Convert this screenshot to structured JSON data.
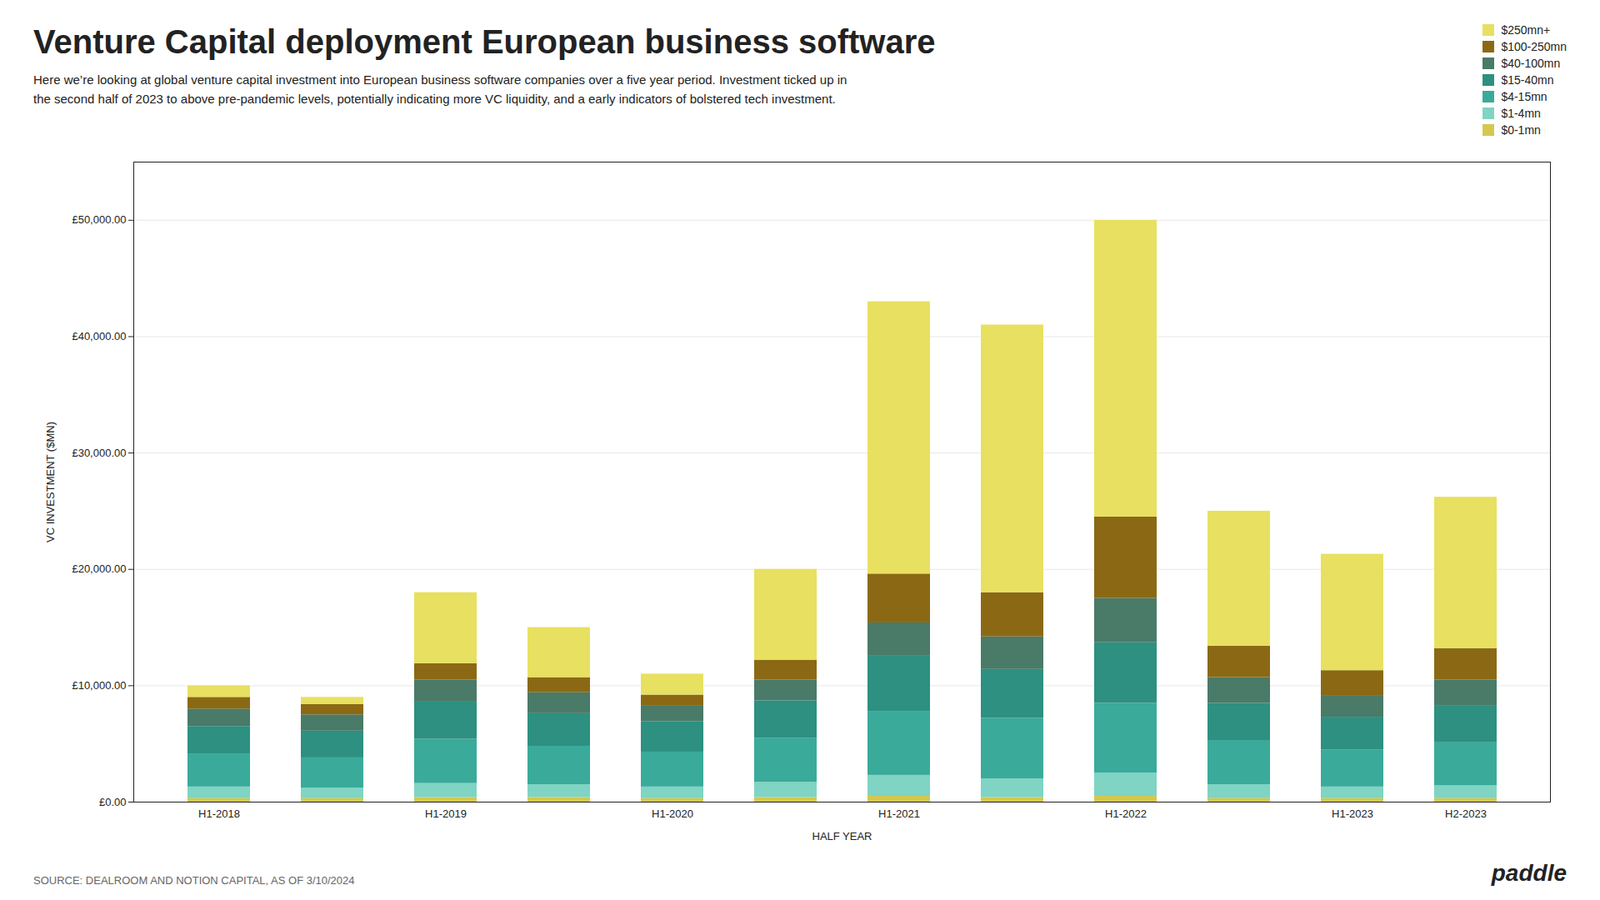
{
  "chart_data": {
    "type": "bar",
    "stacked": true,
    "title": "Venture Capital deployment European business software",
    "subtitle": "Here we’re looking at global venture capital investment into European business software companies over a five year period. Investment ticked up in\nthe second half of 2023 to above pre-pandemic levels, potentially indicating more VC liquidity, and a early indicators of bolstered tech investment.",
    "xlabel": "HALF YEAR",
    "ylabel": "VC INVESTMENT ($MN)",
    "categories": [
      "H1-2018",
      null,
      "H1-2019",
      null,
      "H1-2020",
      null,
      "H1-2021",
      null,
      "H1-2022",
      null,
      "H1-2023",
      "H2-2023"
    ],
    "series": [
      {
        "name": "$0-1mn",
        "color": "#d4c84e",
        "values": [
          300,
          300,
          400,
          400,
          300,
          400,
          500,
          400,
          500,
          300,
          300,
          300
        ]
      },
      {
        "name": "$1-4mn",
        "color": "#7fd4c4",
        "values": [
          1000,
          900,
          1200,
          1100,
          1000,
          1300,
          1800,
          1600,
          2000,
          1200,
          1000,
          1100
        ]
      },
      {
        "name": "$4-15mn",
        "color": "#3aaa9a",
        "values": [
          2800,
          2600,
          3800,
          3300,
          3000,
          3800,
          5500,
          5200,
          6000,
          3800,
          3200,
          3700
        ]
      },
      {
        "name": "$15-40mn",
        "color": "#2d9080",
        "values": [
          2400,
          2300,
          3200,
          2800,
          2600,
          3200,
          4800,
          4200,
          5200,
          3200,
          2800,
          3200
        ]
      },
      {
        "name": "$40-100mn",
        "color": "#4a7a68",
        "values": [
          1500,
          1400,
          1900,
          1800,
          1400,
          1800,
          2800,
          2800,
          3800,
          2200,
          1800,
          2200
        ]
      },
      {
        "name": "$100-250mn",
        "color": "#8B6914",
        "values": [
          1000,
          900,
          1400,
          1300,
          900,
          1700,
          4200,
          3800,
          7000,
          2700,
          2200,
          2700
        ]
      },
      {
        "name": "$250mn+",
        "color": "#e8e060",
        "values": [
          1000,
          600,
          6100,
          4300,
          1800,
          7800,
          23400,
          23000,
          25500,
          11600,
          10000,
          13000
        ]
      }
    ],
    "ylim": [
      0,
      55000
    ],
    "yticks": [
      {
        "value": 0,
        "label": "£0.00"
      },
      {
        "value": 10000,
        "label": "£10,000.00"
      },
      {
        "value": 20000,
        "label": "£20,000.00"
      },
      {
        "value": 30000,
        "label": "£30,000.00"
      },
      {
        "value": 40000,
        "label": "£40,000.00"
      },
      {
        "value": 50000,
        "label": "£50,000.00"
      }
    ],
    "grid": true,
    "legend": "top-right",
    "annotations": [
      "SOURCE: DEALROOM AND NOTION CAPITAL, AS OF 3/10/2024",
      "paddle"
    ]
  }
}
